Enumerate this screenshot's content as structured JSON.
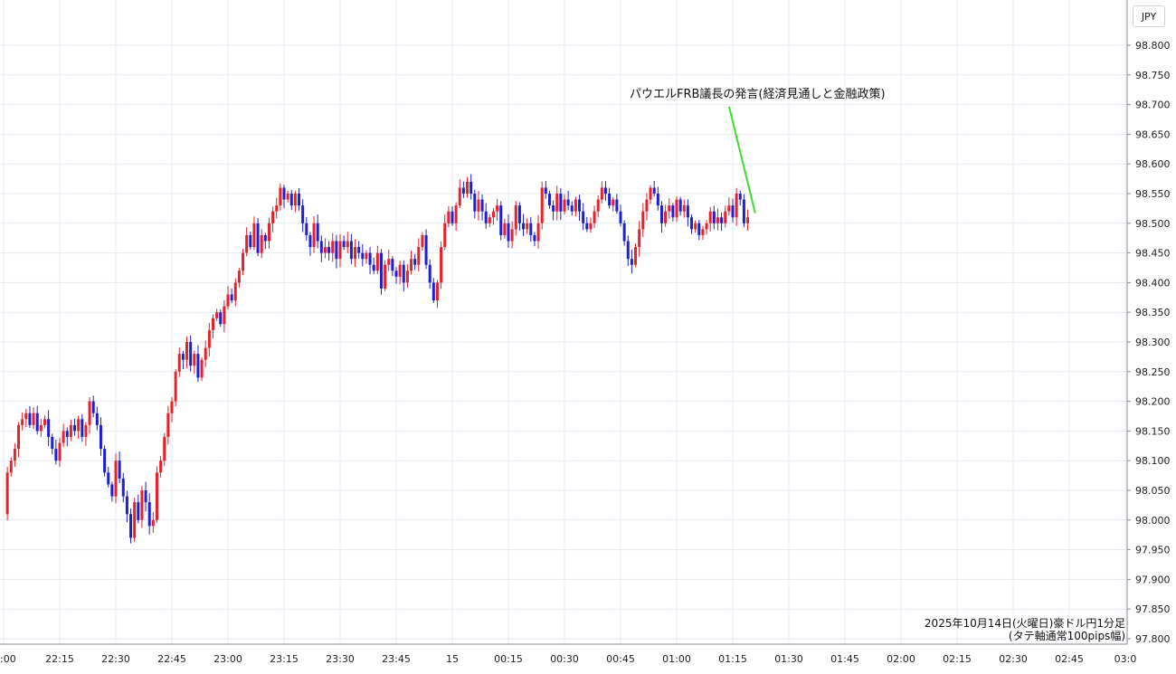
{
  "chart_data": {
    "type": "candlestick",
    "currency_label": "JPY",
    "caption_lines": [
      "2025年10月14日(火曜日)豪ドル円1分足",
      "(タテ軸通常100pips幅)"
    ],
    "ylim": [
      97.775,
      98.85
    ],
    "y_ticks": [
      "98.800",
      "98.750",
      "98.700",
      "98.650",
      "98.600",
      "98.550",
      "98.500",
      "98.450",
      "98.400",
      "98.350",
      "98.300",
      "98.250",
      "98.200",
      "98.150",
      "98.100",
      "98.050",
      "98.000",
      "97.950",
      "97.900",
      "97.850",
      "97.800"
    ],
    "x_tick_labels": [
      ":00",
      "22:15",
      "22:30",
      "22:45",
      "23:00",
      "23:15",
      "23:30",
      "23:45",
      "15",
      "00:15",
      "00:30",
      "00:45",
      "01:00",
      "01:15",
      "01:30",
      "01:45",
      "02:00",
      "02:15",
      "02:30",
      "02:45",
      "03:0"
    ],
    "annotation": {
      "text": "パウエルFRB議長の発言(経済見通しと金融政策)",
      "time": "01:21",
      "value": 98.505
    },
    "colors": {
      "up": "#e8202a",
      "down": "#1d1fd6",
      "grid": "#e3e9f1",
      "annotation_line": "#3ddc2d"
    },
    "close_series": {
      "start_time": "22:01",
      "interval_minutes": 1,
      "values": [
        98.08,
        98.1,
        98.12,
        98.16,
        98.17,
        98.18,
        98.16,
        98.18,
        98.15,
        98.16,
        98.17,
        98.14,
        98.12,
        98.1,
        98.13,
        98.15,
        98.14,
        98.16,
        98.15,
        98.17,
        98.14,
        98.16,
        98.2,
        98.18,
        98.16,
        98.12,
        98.08,
        98.06,
        98.04,
        98.1,
        98.07,
        98.04,
        98.01,
        97.97,
        98.03,
        98.0,
        98.05,
        98.03,
        97.99,
        98.0,
        98.08,
        98.1,
        98.14,
        98.18,
        98.2,
        98.25,
        98.28,
        98.27,
        98.3,
        98.26,
        98.28,
        98.24,
        98.27,
        98.29,
        98.32,
        98.34,
        98.35,
        98.33,
        98.36,
        98.38,
        98.37,
        98.4,
        98.42,
        98.45,
        98.48,
        98.46,
        98.5,
        98.45,
        98.48,
        98.47,
        98.5,
        98.52,
        98.53,
        98.56,
        98.54,
        98.55,
        98.53,
        98.55,
        98.53,
        98.5,
        98.48,
        98.46,
        98.5,
        98.47,
        98.45,
        98.46,
        98.45,
        98.47,
        98.44,
        98.47,
        98.46,
        98.47,
        98.44,
        98.46,
        98.45,
        98.44,
        98.45,
        98.43,
        98.42,
        98.45,
        98.39,
        98.43,
        98.44,
        98.42,
        98.41,
        98.43,
        98.4,
        98.42,
        98.44,
        98.43,
        98.46,
        98.48,
        98.43,
        98.4,
        98.37,
        98.4,
        98.46,
        98.5,
        98.52,
        98.5,
        98.53,
        98.56,
        98.55,
        98.57,
        98.55,
        98.52,
        98.54,
        98.52,
        98.5,
        98.51,
        98.52,
        98.53,
        98.48,
        98.5,
        98.47,
        98.49,
        98.53,
        98.5,
        98.49,
        98.5,
        98.48,
        98.47,
        98.5,
        98.56,
        98.55,
        98.53,
        98.52,
        98.55,
        98.52,
        98.54,
        98.53,
        98.52,
        98.54,
        98.52,
        98.5,
        98.49,
        98.5,
        98.52,
        98.54,
        98.56,
        98.55,
        98.53,
        98.54,
        98.52,
        98.5,
        98.47,
        98.44,
        98.43,
        98.46,
        98.49,
        98.52,
        98.54,
        98.56,
        98.55,
        98.53,
        98.5,
        98.52,
        98.53,
        98.51,
        98.54,
        98.52,
        98.53,
        98.51,
        98.49,
        98.5,
        98.48,
        98.49,
        98.5,
        98.52,
        98.5,
        98.51,
        98.5,
        98.52,
        98.53,
        98.51,
        98.55,
        98.54,
        98.5,
        98.51
      ]
    }
  }
}
